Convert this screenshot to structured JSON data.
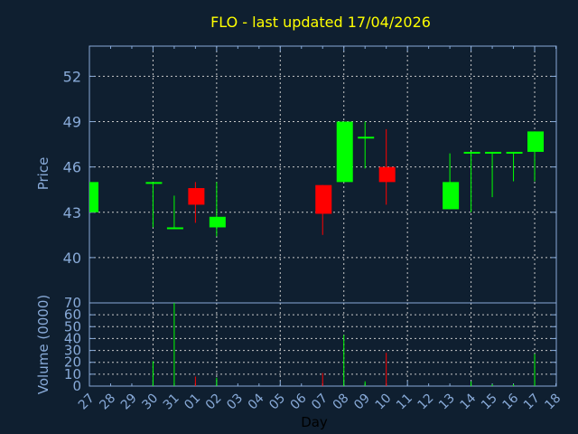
{
  "chart_data": {
    "type": "candlestick",
    "title": "FLO - last updated 17/04/2026",
    "xlabel": "Day",
    "price_panel": {
      "ylabel": "Price",
      "ylim": [
        37,
        54
      ],
      "yticks": [
        40,
        43,
        46,
        49,
        52
      ],
      "grid": true
    },
    "volume_panel": {
      "ylabel": "Volume (0000)",
      "ylim": [
        0,
        70
      ],
      "yticks": [
        0,
        10,
        20,
        30,
        40,
        50,
        60,
        70
      ],
      "grid": true
    },
    "x_tick_labels": [
      "27",
      "28",
      "29",
      "30",
      "31",
      "01",
      "02",
      "03",
      "04",
      "05",
      "06",
      "07",
      "08",
      "09",
      "10",
      "11",
      "12",
      "13",
      "14",
      "15",
      "16",
      "17",
      "18"
    ],
    "x_grid_every": 3,
    "candles": [
      {
        "day": "27",
        "open": 43.0,
        "high": 45.0,
        "low": 43.0,
        "close": 45.0,
        "volume": 0
      },
      {
        "day": "30",
        "open": 45.0,
        "high": 45.0,
        "low": 42.0,
        "close": 45.0,
        "volume": 21
      },
      {
        "day": "31",
        "open": 42.0,
        "high": 44.1,
        "low": 42.0,
        "close": 42.0,
        "volume": 70
      },
      {
        "day": "01",
        "open": 44.6,
        "high": 45.0,
        "low": 42.3,
        "close": 43.5,
        "volume": 8
      },
      {
        "day": "02",
        "open": 42.0,
        "high": 45.0,
        "low": 41.4,
        "close": 42.7,
        "volume": 7
      },
      {
        "day": "07",
        "open": 44.8,
        "high": 44.8,
        "low": 41.5,
        "close": 42.9,
        "volume": 11
      },
      {
        "day": "08",
        "open": 45.0,
        "high": 49.0,
        "low": 45.0,
        "close": 49.0,
        "volume": 43
      },
      {
        "day": "09",
        "open": 48.0,
        "high": 49.0,
        "low": 45.9,
        "close": 48.0,
        "volume": 4
      },
      {
        "day": "10",
        "open": 46.0,
        "high": 48.5,
        "low": 43.5,
        "close": 45.0,
        "volume": 28
      },
      {
        "day": "13",
        "open": 43.2,
        "high": 46.9,
        "low": 43.2,
        "close": 45.0,
        "volume": 0
      },
      {
        "day": "14",
        "open": 47.0,
        "high": 47.0,
        "low": 43.0,
        "close": 47.0,
        "volume": 4
      },
      {
        "day": "15",
        "open": 47.0,
        "high": 47.0,
        "low": 44.0,
        "close": 47.0,
        "volume": 1.5
      },
      {
        "day": "16",
        "open": 47.0,
        "high": 47.0,
        "low": 45.05,
        "close": 47.0,
        "volume": 1.5
      },
      {
        "day": "17",
        "open": 47.0,
        "high": 48.35,
        "low": 45.05,
        "close": 48.35,
        "volume": 27
      }
    ],
    "colors": {
      "background": "#0f1f30",
      "axis": "#88aad8",
      "grid": "#c8c8c8",
      "title": "#ffff00",
      "up": "#00ff00",
      "down": "#ff0000",
      "xlabel": "#000000"
    }
  }
}
